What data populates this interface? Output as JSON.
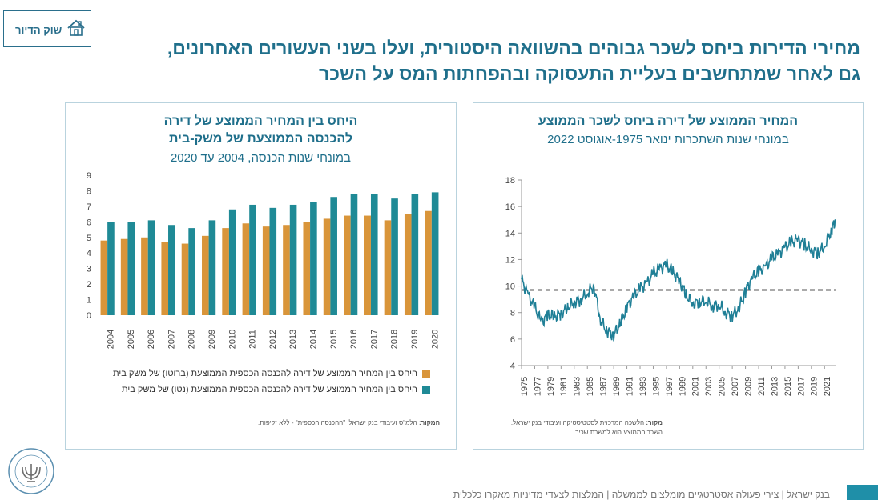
{
  "section_tag": {
    "label": "שוק הדיור",
    "icon": "house-icon"
  },
  "title": {
    "line1": "מחירי הדירות ביחס לשכר גבוהים בהשוואה היסטורית, ועלו בשני העשורים האחרונים,",
    "line2": "גם לאחר שמתחשבים בעליית התעסוקה ובהפחתות המס על השכר"
  },
  "left_panel": {
    "title_line1": "היחס בין המחיר הממוצע של דירה",
    "title_line2": "להכנסה הממוצעת של משק-בית",
    "subtitle": "במונחי שנות הכנסה, 2004 עד 2020",
    "legend": [
      "היחס בין המחיר הממוצע של דירה להכנסה הכספית הממוצעת (ברוטו) של משק בית",
      "היחס בין המחיר הממוצע של דירה להכנסה הכספית הממוצעת (נטו) של משק בית"
    ],
    "source_label": "המקור:",
    "source_text": " הלמ\"ס ועיבודי בנק ישראל. \"ההכנסה הכספית\" - ללא זקיפות."
  },
  "right_panel": {
    "title": "המחיר הממוצע של דירה ביחס לשכר הממוצע",
    "subtitle": "במונחי שנות השתכרות ינואר 1975-אוגוסט 2022",
    "source_label": "מקור:",
    "source_text": " הלשכה המרכזית לסטטיסטיקה ועיבודי בנק ישראל.",
    "source_line2": "השכר הממוצע הוא למשרת שכיר."
  },
  "footer": {
    "text": "בנק ישראל | צירי פעולה אסטרטגיים מומלצים לממשלה | המלצות לצעדי מדיניות מאקרו כלכלית"
  },
  "colors": {
    "accent": "#1f6f8b",
    "gross": "#d9953a",
    "net": "#1f8a96",
    "line": "#1f7f96"
  },
  "chart_data": [
    {
      "type": "bar",
      "categories": [
        "2004",
        "2005",
        "2006",
        "2007",
        "2008",
        "2009",
        "2010",
        "2011",
        "2012",
        "2013",
        "2014",
        "2015",
        "2016",
        "2017",
        "2018",
        "2019",
        "2020"
      ],
      "series": [
        {
          "name": "היחס בין המחיר הממוצע של דירה להכנסה הכספית הממוצעת (ברוטו) של משק בית",
          "values": [
            4.8,
            4.9,
            5.0,
            4.7,
            4.6,
            5.1,
            5.6,
            5.9,
            5.7,
            5.8,
            6.0,
            6.2,
            6.4,
            6.4,
            6.1,
            6.5,
            6.7
          ]
        },
        {
          "name": "היחס בין המחיר הממוצע של דירה להכנסה הכספית הממוצעת (נטו) של משק בית",
          "values": [
            6.0,
            6.0,
            6.1,
            5.8,
            5.6,
            6.1,
            6.8,
            7.1,
            6.9,
            7.1,
            7.3,
            7.6,
            7.8,
            7.8,
            7.5,
            7.8,
            7.9
          ]
        }
      ],
      "ylim": [
        0,
        9
      ],
      "yticks": [
        0,
        1,
        2,
        3,
        4,
        5,
        6,
        7,
        8,
        9
      ],
      "grid": false,
      "legend_position": "bottom"
    },
    {
      "type": "line",
      "x_labels": [
        "1975",
        "1977",
        "1979",
        "1981",
        "1983",
        "1985",
        "1987",
        "1989",
        "1991",
        "1993",
        "1995",
        "1997",
        "1999",
        "2001",
        "2003",
        "2005",
        "2007",
        "2009",
        "2011",
        "2013",
        "2015",
        "2017",
        "2019",
        "2021"
      ],
      "xlim": [
        1975,
        2022.67
      ],
      "ylim": [
        4,
        18
      ],
      "yticks": [
        4,
        6,
        8,
        10,
        12,
        14,
        16,
        18
      ],
      "reference_value": 9.7,
      "series": [
        {
          "x": [
            1975,
            1976,
            1977,
            1978,
            1979,
            1980,
            1981,
            1982,
            1983,
            1984,
            1985,
            1986,
            1987,
            1988,
            1989,
            1990,
            1991,
            1992,
            1993,
            1994,
            1995,
            1996,
            1997,
            1998,
            1999,
            2000,
            2001,
            2002,
            2003,
            2004,
            2005,
            2006,
            2007,
            2008,
            2009,
            2010,
            2011,
            2012,
            2013,
            2014,
            2015,
            2016,
            2017,
            2018,
            2019,
            2020,
            2021,
            2022,
            2022.67
          ],
          "y": [
            10.5,
            9.3,
            8.4,
            7.3,
            7.8,
            7.7,
            7.9,
            8.4,
            8.8,
            9.0,
            9.5,
            10.0,
            7.4,
            6.6,
            6.3,
            7.2,
            8.4,
            9.2,
            9.8,
            10.2,
            10.9,
            11.3,
            11.6,
            11.0,
            10.4,
            9.3,
            8.7,
            8.8,
            8.9,
            8.5,
            8.6,
            8.0,
            7.8,
            8.3,
            9.6,
            10.6,
            11.1,
            11.4,
            12.1,
            12.4,
            12.9,
            13.3,
            13.5,
            13.1,
            12.7,
            12.5,
            13.0,
            14.2,
            15.0
          ]
        }
      ],
      "grid": false
    }
  ]
}
